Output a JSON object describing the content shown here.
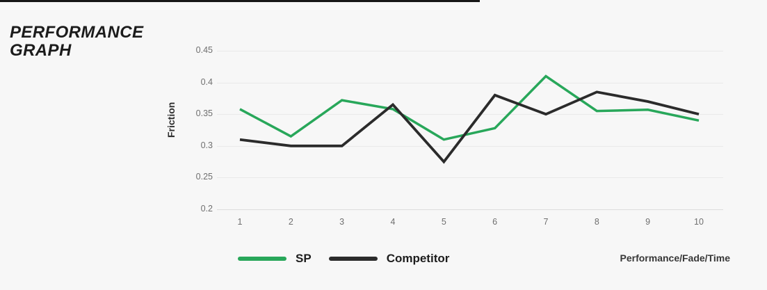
{
  "page": {
    "background": "#f7f7f7",
    "top_bar_color": "#161616"
  },
  "header": {
    "title_line1": "PERFORMANCE",
    "title_line2": "GRAPH"
  },
  "chart_data": {
    "type": "line",
    "title": "Performance Graph",
    "ylabel": "Friction",
    "caption": "Performance/Fade/Time",
    "categories": [
      "1",
      "2",
      "3",
      "4",
      "5",
      "6",
      "7",
      "8",
      "9",
      "10"
    ],
    "yticks": [
      "0.45",
      "0.4",
      "0.35",
      "0.3",
      "0.25",
      "0.2"
    ],
    "ylim": [
      0.2,
      0.45
    ],
    "grid": true,
    "legend_position": "bottom",
    "series": [
      {
        "name": "SP",
        "color": "#28a75a",
        "stroke_width": 3.5,
        "values": [
          0.358,
          0.315,
          0.372,
          0.358,
          0.31,
          0.328,
          0.41,
          0.355,
          0.357,
          0.34
        ]
      },
      {
        "name": "Competitor",
        "color": "#2b2b2b",
        "stroke_width": 3.8,
        "values": [
          0.31,
          0.3,
          0.3,
          0.365,
          0.275,
          0.38,
          0.35,
          0.385,
          0.37,
          0.35
        ]
      }
    ]
  }
}
